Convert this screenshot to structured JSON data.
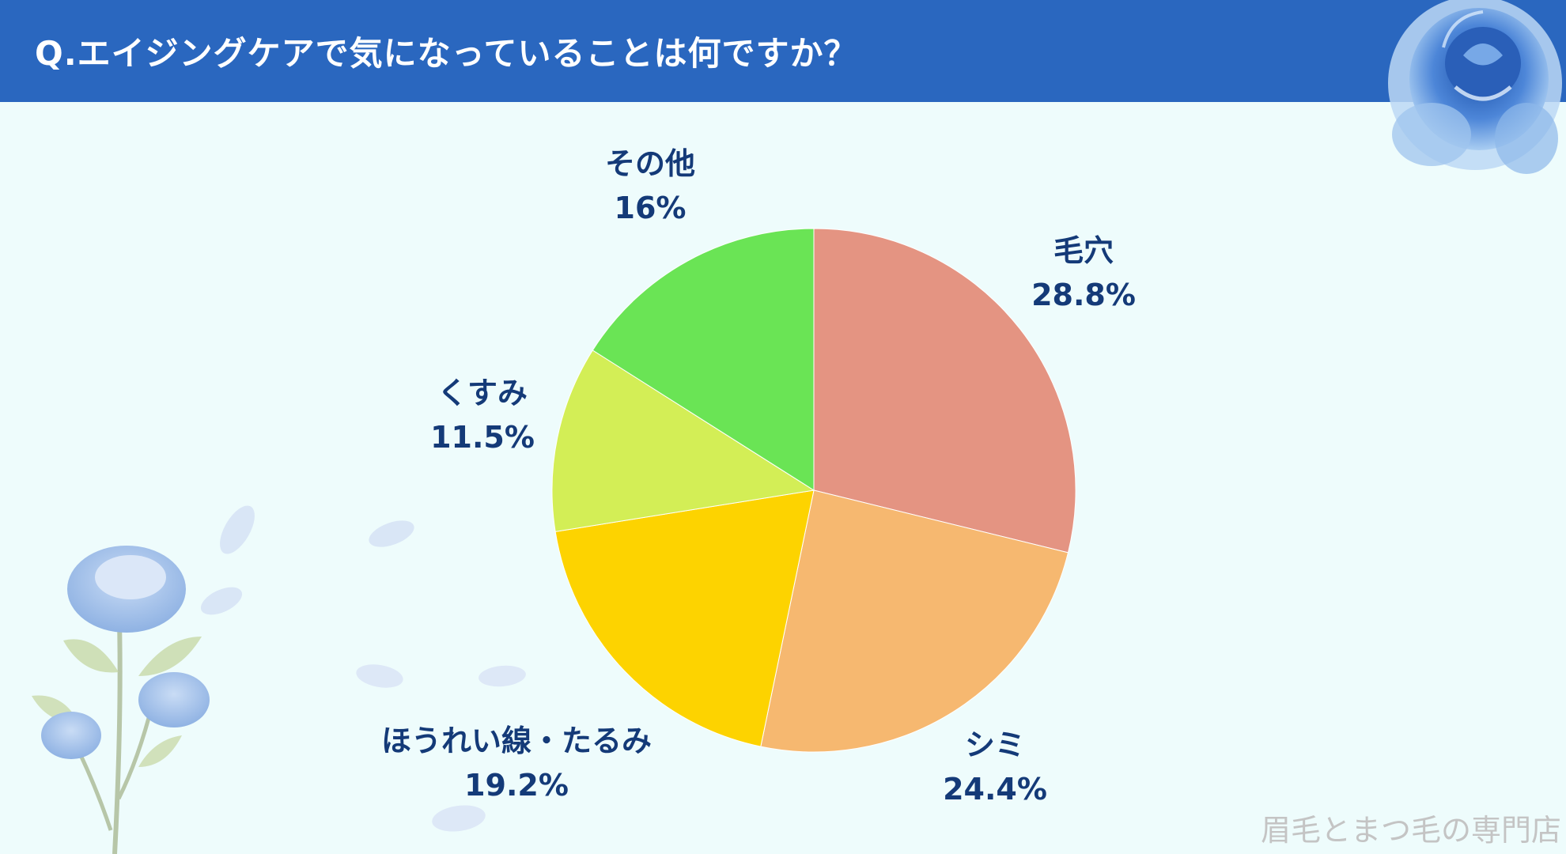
{
  "header": {
    "title": "Q.エイジングケアで気になっていることは何ですか？"
  },
  "chart_data": {
    "type": "pie",
    "categories": [
      "毛穴",
      "シミ",
      "ほうれい線・たるみ",
      "くすみ",
      "その他"
    ],
    "values": [
      28.8,
      24.4,
      19.2,
      11.5,
      16
    ],
    "value_labels": [
      "28.8%",
      "24.4%",
      "19.2%",
      "11.5%",
      "16%"
    ],
    "colors": [
      "#e49482",
      "#f6b870",
      "#fdd300",
      "#d3ee56",
      "#6ae455"
    ],
    "start_angle": "12 o'clock",
    "direction": "clockwise"
  },
  "footer": {
    "credit": "眉毛とまつ毛の専門店"
  }
}
